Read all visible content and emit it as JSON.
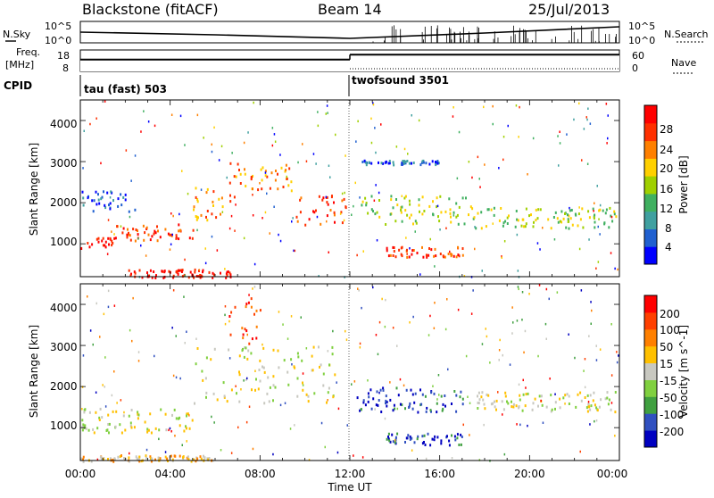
{
  "header": {
    "station": "Blackstone (fitACF)",
    "beam": "Beam 14",
    "date": "25/Jul/2013"
  },
  "left_labels": {
    "nsky": "N.Sky",
    "freq_line1": "Freq.",
    "freq_line2": "[MHz]",
    "cpid": "CPID"
  },
  "right_labels": {
    "nsearch": "N.Search",
    "nave": "Nave"
  },
  "colors": {
    "power_scale": [
      "#0000ff",
      "#2060d0",
      "#40a0a0",
      "#40b060",
      "#a0d000",
      "#ffd000",
      "#ff8000",
      "#ff3000",
      "#ff0000"
    ],
    "velocity_scale": [
      "#0000c0",
      "#3050c0",
      "#40a040",
      "#80d040",
      "#c8c8c0",
      "#ffc000",
      "#ff8000",
      "#ff4000",
      "#ff0000"
    ]
  },
  "chart_data": [
    {
      "type": "line",
      "name": "noise_panel",
      "left_tick_labels": [
        "10^5",
        "10^0"
      ],
      "right_tick_labels": [
        "10^5",
        "10^0"
      ]
    },
    {
      "type": "line",
      "name": "freq_nave_panel",
      "left_tick_labels": [
        "18",
        "8"
      ],
      "right_tick_labels": [
        "60",
        "0"
      ],
      "segments": [
        {
          "t0": 0,
          "t1": 12,
          "freq_level": 0.55
        },
        {
          "t0": 12,
          "t1": 24,
          "freq_level": 0.78
        }
      ]
    },
    {
      "type": "table",
      "name": "cpid",
      "entries": [
        {
          "start_hour": 0,
          "label": "tau (fast) 503"
        },
        {
          "start_hour": 12,
          "label": "twofsound 3501"
        }
      ]
    },
    {
      "type": "heatmap",
      "name": "power",
      "ylabel": "Slant Range [km]",
      "ylim": [
        200,
        4500
      ],
      "y_ticks": [
        "1000",
        "2000",
        "3000",
        "4000"
      ],
      "colorbar_title": "Power [dB]",
      "colorbar_ticks": [
        "28",
        "24",
        "20",
        "16",
        "12",
        "8",
        "4"
      ],
      "bands": [
        {
          "t0": 0.0,
          "t1": 1.5,
          "r0": 900,
          "r1": 1200,
          "level": 8
        },
        {
          "t0": 1.5,
          "t1": 5.0,
          "r0": 1100,
          "r1": 1500,
          "level": 7
        },
        {
          "t0": 5.0,
          "t1": 7.0,
          "r0": 1600,
          "r1": 2400,
          "level": 6
        },
        {
          "t0": 6.5,
          "t1": 9.5,
          "r0": 2300,
          "r1": 3000,
          "level": 6
        },
        {
          "t0": 9.5,
          "t1": 11.8,
          "r0": 1400,
          "r1": 2200,
          "level": 7
        },
        {
          "t0": 12.3,
          "t1": 17.5,
          "r0": 1500,
          "r1": 2200,
          "level": 4
        },
        {
          "t0": 13.5,
          "t1": 17.0,
          "r0": 700,
          "r1": 950,
          "level": 7
        },
        {
          "t0": 17.5,
          "t1": 24.0,
          "r0": 1400,
          "r1": 1900,
          "level": 4
        },
        {
          "t0": 12.5,
          "t1": 16.0,
          "r0": 2950,
          "r1": 3050,
          "level": 1
        },
        {
          "t0": 0.0,
          "t1": 2.5,
          "r0": 1800,
          "r1": 2300,
          "level": 1
        },
        {
          "t0": 2.0,
          "t1": 7.0,
          "r0": 200,
          "r1": 400,
          "level": 8
        }
      ]
    },
    {
      "type": "heatmap",
      "name": "velocity",
      "ylabel": "Slant Range [km]",
      "ylim": [
        200,
        4500
      ],
      "y_ticks": [
        "1000",
        "2000",
        "3000",
        "4000"
      ],
      "colorbar_title": "Velocity [m s^-1]",
      "colorbar_ticks": [
        "200",
        "100",
        "50",
        "15",
        "-15",
        "-50",
        "-100",
        "-200"
      ],
      "bands": [
        {
          "t0": 0.0,
          "t1": 5.0,
          "r0": 900,
          "r1": 1500,
          "level": 4
        },
        {
          "t0": 5.0,
          "t1": 11.5,
          "r0": 1600,
          "r1": 3000,
          "level": 4
        },
        {
          "t0": 6.5,
          "t1": 8.0,
          "r0": 3000,
          "r1": 4200,
          "level": 7
        },
        {
          "t0": 12.3,
          "t1": 17.5,
          "r0": 1400,
          "r1": 2000,
          "level": 1
        },
        {
          "t0": 13.5,
          "t1": 17.0,
          "r0": 600,
          "r1": 900,
          "level": 1
        },
        {
          "t0": 17.5,
          "t1": 24.0,
          "r0": 1400,
          "r1": 1900,
          "level": 4
        },
        {
          "t0": 0.0,
          "t1": 6.0,
          "r0": 200,
          "r1": 350,
          "level": 5
        }
      ]
    }
  ],
  "time_axis": {
    "xlabel": "Time UT",
    "ticks": [
      "00:00",
      "04:00",
      "08:00",
      "12:00",
      "16:00",
      "20:00",
      "00:00"
    ]
  }
}
